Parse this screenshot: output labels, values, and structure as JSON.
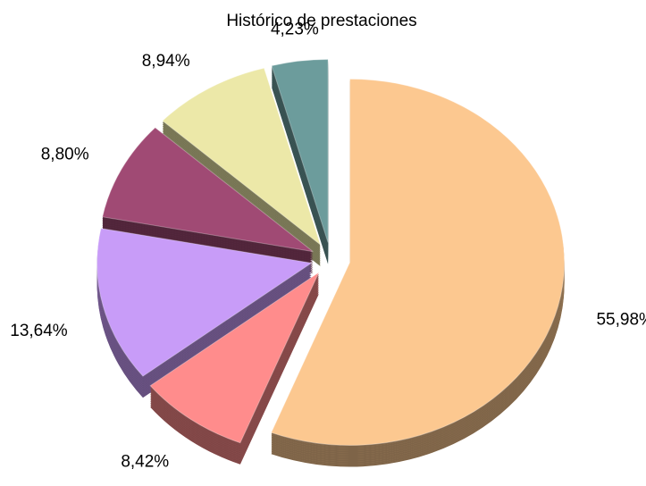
{
  "chart_data": {
    "type": "pie",
    "title": "Histórico de prestaciones",
    "values": [
      55.98,
      8.42,
      13.64,
      8.8,
      8.94,
      4.23
    ],
    "value_labels": [
      "55,98%",
      "8,42%",
      "13,64%",
      "8,80%",
      "8,94%",
      "4,23%"
    ],
    "colors": [
      "#fcc890",
      "#ff8c8c",
      "#c89cf8",
      "#a04a74",
      "#ece8a8",
      "#6c9c9c"
    ]
  }
}
